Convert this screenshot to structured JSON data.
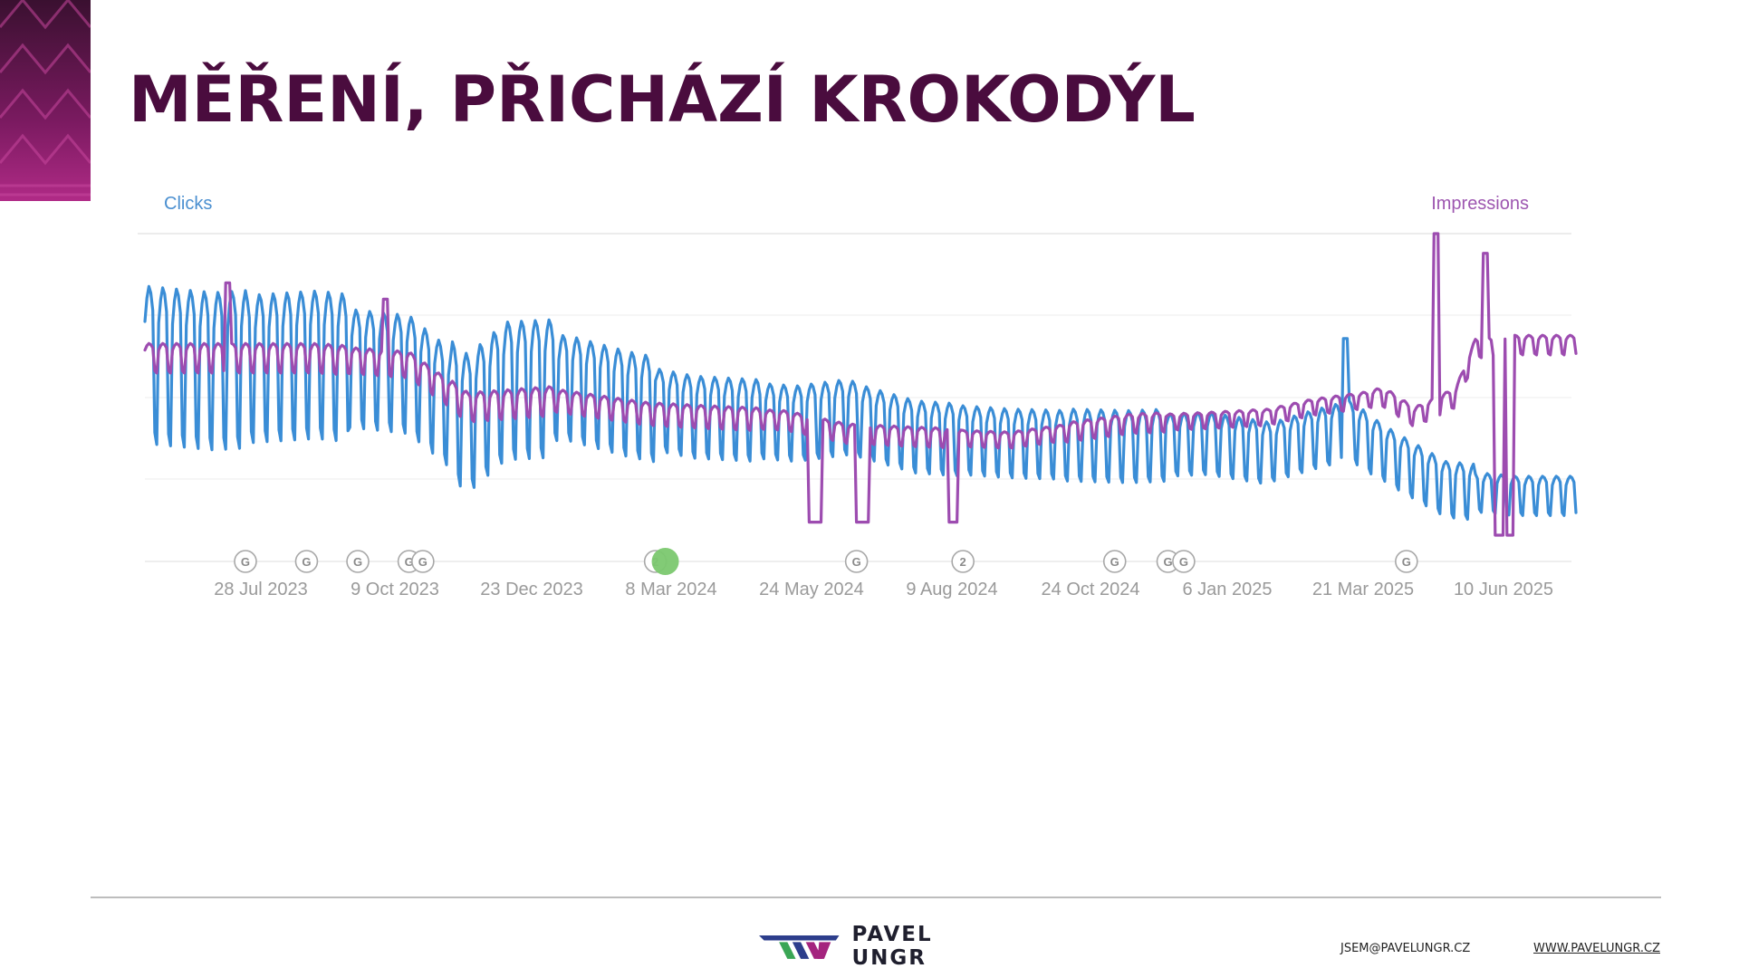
{
  "slide": {
    "title": "MĚŘENÍ, PŘICHÁZÍ KROKODÝL"
  },
  "footer": {
    "brand": "PAVEL UNGR",
    "email": "JSEM@PAVELUNGR.CZ",
    "website": "WWW.PAVELUNGR.CZ"
  },
  "colors": {
    "title": "#4a0c3e",
    "clicks": "#3a8dd6",
    "impressions": "#9d4cb0",
    "corner_pattern": "#8c1f6f"
  },
  "chart_data": {
    "type": "line",
    "left_axis_label": "Clicks",
    "right_axis_label": "Impressions",
    "x_range": [
      "2023-06-20",
      "2025-06-15"
    ],
    "x_ticks": [
      "28 Jul 2023",
      "9 Oct 2023",
      "23 Dec 2023",
      "8 Mar 2024",
      "24 May 2024",
      "9 Aug 2024",
      "24 Oct 2024",
      "6 Jan 2025",
      "21 Mar 2025",
      "10 Jun 2025"
    ],
    "y_axis_values_shown": false,
    "grid": "horizontal",
    "series": [
      {
        "name": "Clicks",
        "axis": "left",
        "pattern": "weekly",
        "normalized_scale": [
          0,
          1
        ],
        "amplitude": [
          0.48,
          0.45,
          0.36,
          0.42,
          0.32,
          0.25,
          0.23,
          0.22,
          0.21,
          0.22,
          0.19,
          0.18,
          0.17,
          0.12
        ],
        "points": [
          [
            "2023-06-20",
            0.6
          ],
          [
            "2023-07-25",
            0.58
          ],
          [
            "2023-09-15",
            0.6
          ],
          [
            "2023-11-01",
            0.57
          ],
          [
            "2023-12-01",
            0.42
          ],
          [
            "2023-12-20",
            0.52
          ],
          [
            "2024-01-20",
            0.53
          ],
          [
            "2024-02-20",
            0.48
          ],
          [
            "2024-03-25",
            0.44
          ],
          [
            "2024-04-25",
            0.43
          ],
          [
            "2024-05-15",
            0.42
          ],
          [
            "2024-06-10",
            0.44
          ],
          [
            "2024-07-15",
            0.38
          ],
          [
            "2024-09-01",
            0.36
          ],
          [
            "2024-11-01",
            0.35
          ],
          [
            "2024-12-10",
            0.36
          ],
          [
            "2025-01-10",
            0.33
          ],
          [
            "2025-02-01",
            0.37
          ],
          [
            "2025-02-20",
            0.4
          ],
          [
            "2025-03-15",
            0.31
          ],
          [
            "2025-04-10",
            0.22
          ],
          [
            "2025-05-15",
            0.2
          ],
          [
            "2025-06-15",
            0.2
          ]
        ],
        "spikes": [
          {
            "date": "2025-02-18",
            "value": 0.68
          }
        ]
      },
      {
        "name": "Impressions",
        "axis": "right",
        "pattern": "weekly",
        "normalized_scale": [
          0,
          1
        ],
        "amplitude": [
          0.09,
          0.09,
          0.08,
          0.09,
          0.07,
          0.07,
          0.06,
          0.06,
          0.05,
          0.06,
          0.05,
          0.05,
          0.06,
          0.06
        ],
        "points": [
          [
            "2023-06-20",
            0.62
          ],
          [
            "2023-09-15",
            0.62
          ],
          [
            "2023-11-01",
            0.6
          ],
          [
            "2023-12-01",
            0.47
          ],
          [
            "2024-01-15",
            0.49
          ],
          [
            "2024-03-01",
            0.45
          ],
          [
            "2024-04-01",
            0.44
          ],
          [
            "2024-05-10",
            0.43
          ],
          [
            "2024-06-10",
            0.39
          ],
          [
            "2024-07-15",
            0.38
          ],
          [
            "2024-09-01",
            0.37
          ],
          [
            "2024-11-01",
            0.42
          ],
          [
            "2024-12-10",
            0.43
          ],
          [
            "2025-01-10",
            0.44
          ],
          [
            "2025-02-01",
            0.47
          ],
          [
            "2025-03-10",
            0.5
          ],
          [
            "2025-03-25",
            0.44
          ],
          [
            "2025-04-15",
            0.5
          ],
          [
            "2025-04-25",
            0.65
          ],
          [
            "2025-05-15",
            0.66
          ],
          [
            "2025-06-10",
            0.66
          ]
        ],
        "spikes": [
          {
            "date": "2023-08-01",
            "value": 0.85
          },
          {
            "date": "2023-10-20",
            "value": 0.8
          },
          {
            "date": "2025-04-05",
            "value": 1.0
          },
          {
            "date": "2025-04-30",
            "value": 0.94
          }
        ],
        "drops": [
          {
            "from": "2024-05-22",
            "to": "2024-05-28",
            "value": 0.12
          },
          {
            "from": "2024-06-15",
            "to": "2024-06-21",
            "value": 0.12
          },
          {
            "from": "2024-08-01",
            "to": "2024-08-05",
            "value": 0.12
          },
          {
            "from": "2025-05-05",
            "to": "2025-05-09",
            "value": 0.08
          },
          {
            "from": "2025-05-11",
            "to": "2025-05-14",
            "value": 0.08
          }
        ]
      }
    ],
    "annotations": [
      {
        "date": "2023-08-10",
        "label": "G",
        "highlight": false
      },
      {
        "date": "2023-09-10",
        "label": "G",
        "highlight": false
      },
      {
        "date": "2023-10-06",
        "label": "G",
        "highlight": false
      },
      {
        "date": "2023-11-01",
        "label": "G",
        "highlight": false
      },
      {
        "date": "2023-11-08",
        "label": "G",
        "highlight": false
      },
      {
        "date": "2024-03-05",
        "label": "2",
        "highlight": false
      },
      {
        "date": "2024-03-10",
        "label": "",
        "highlight": true
      },
      {
        "date": "2024-06-15",
        "label": "G",
        "highlight": false
      },
      {
        "date": "2024-08-08",
        "label": "2",
        "highlight": false
      },
      {
        "date": "2024-10-24",
        "label": "G",
        "highlight": false
      },
      {
        "date": "2024-11-20",
        "label": "G",
        "highlight": false
      },
      {
        "date": "2024-11-28",
        "label": "G",
        "highlight": false
      },
      {
        "date": "2025-03-21",
        "label": "G",
        "highlight": false
      }
    ]
  }
}
